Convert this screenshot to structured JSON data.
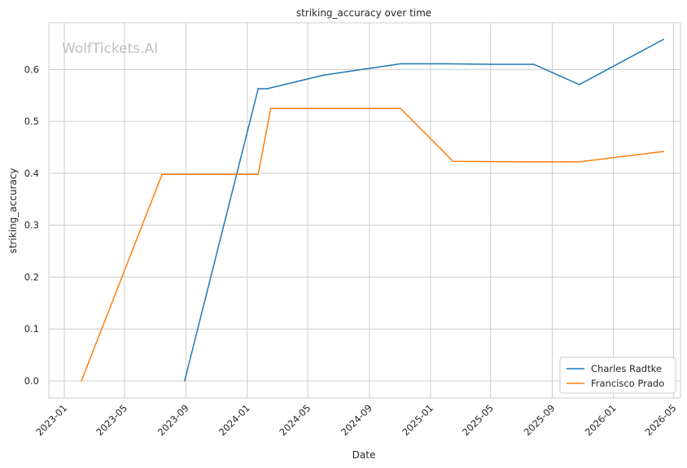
{
  "chart_data": {
    "type": "line",
    "title": "striking_accuracy over time",
    "xlabel": "Date",
    "ylabel": "striking_accuracy",
    "watermark": "WolfTickets.AI",
    "x_ticks": [
      "2023-01",
      "2023-05",
      "2023-09",
      "2024-01",
      "2024-05",
      "2024-09",
      "2025-01",
      "2025-05",
      "2025-09",
      "2026-01",
      "2026-05"
    ],
    "y_ticks": [
      "0.0",
      "0.1",
      "0.2",
      "0.3",
      "0.4",
      "0.5",
      "0.6"
    ],
    "xlim": [
      "2022-12-01",
      "2026-05-15"
    ],
    "ylim": [
      -0.033,
      0.69
    ],
    "grid": true,
    "legend_position": "bottom-right",
    "series": [
      {
        "name": "Charles Radtke",
        "color": "#1f77b4",
        "points": [
          {
            "x": "2023-08-29",
            "y": 0.0
          },
          {
            "x": "2024-01-23",
            "y": 0.563
          },
          {
            "x": "2024-02-10",
            "y": 0.563
          },
          {
            "x": "2024-06-01",
            "y": 0.589
          },
          {
            "x": "2024-11-02",
            "y": 0.611
          },
          {
            "x": "2025-02-01",
            "y": 0.611
          },
          {
            "x": "2025-05-01",
            "y": 0.61
          },
          {
            "x": "2025-07-26",
            "y": 0.61
          },
          {
            "x": "2025-10-25",
            "y": 0.571
          },
          {
            "x": "2026-04-11",
            "y": 0.658
          }
        ]
      },
      {
        "name": "Francisco Prado",
        "color": "#ff7f0e",
        "points": [
          {
            "x": "2023-02-04",
            "y": 0.0
          },
          {
            "x": "2023-07-15",
            "y": 0.398
          },
          {
            "x": "2024-01-23",
            "y": 0.398
          },
          {
            "x": "2024-02-17",
            "y": 0.525
          },
          {
            "x": "2024-11-02",
            "y": 0.525
          },
          {
            "x": "2025-02-15",
            "y": 0.423
          },
          {
            "x": "2025-07-26",
            "y": 0.422
          },
          {
            "x": "2025-10-25",
            "y": 0.422
          },
          {
            "x": "2026-04-11",
            "y": 0.442
          }
        ]
      }
    ]
  }
}
